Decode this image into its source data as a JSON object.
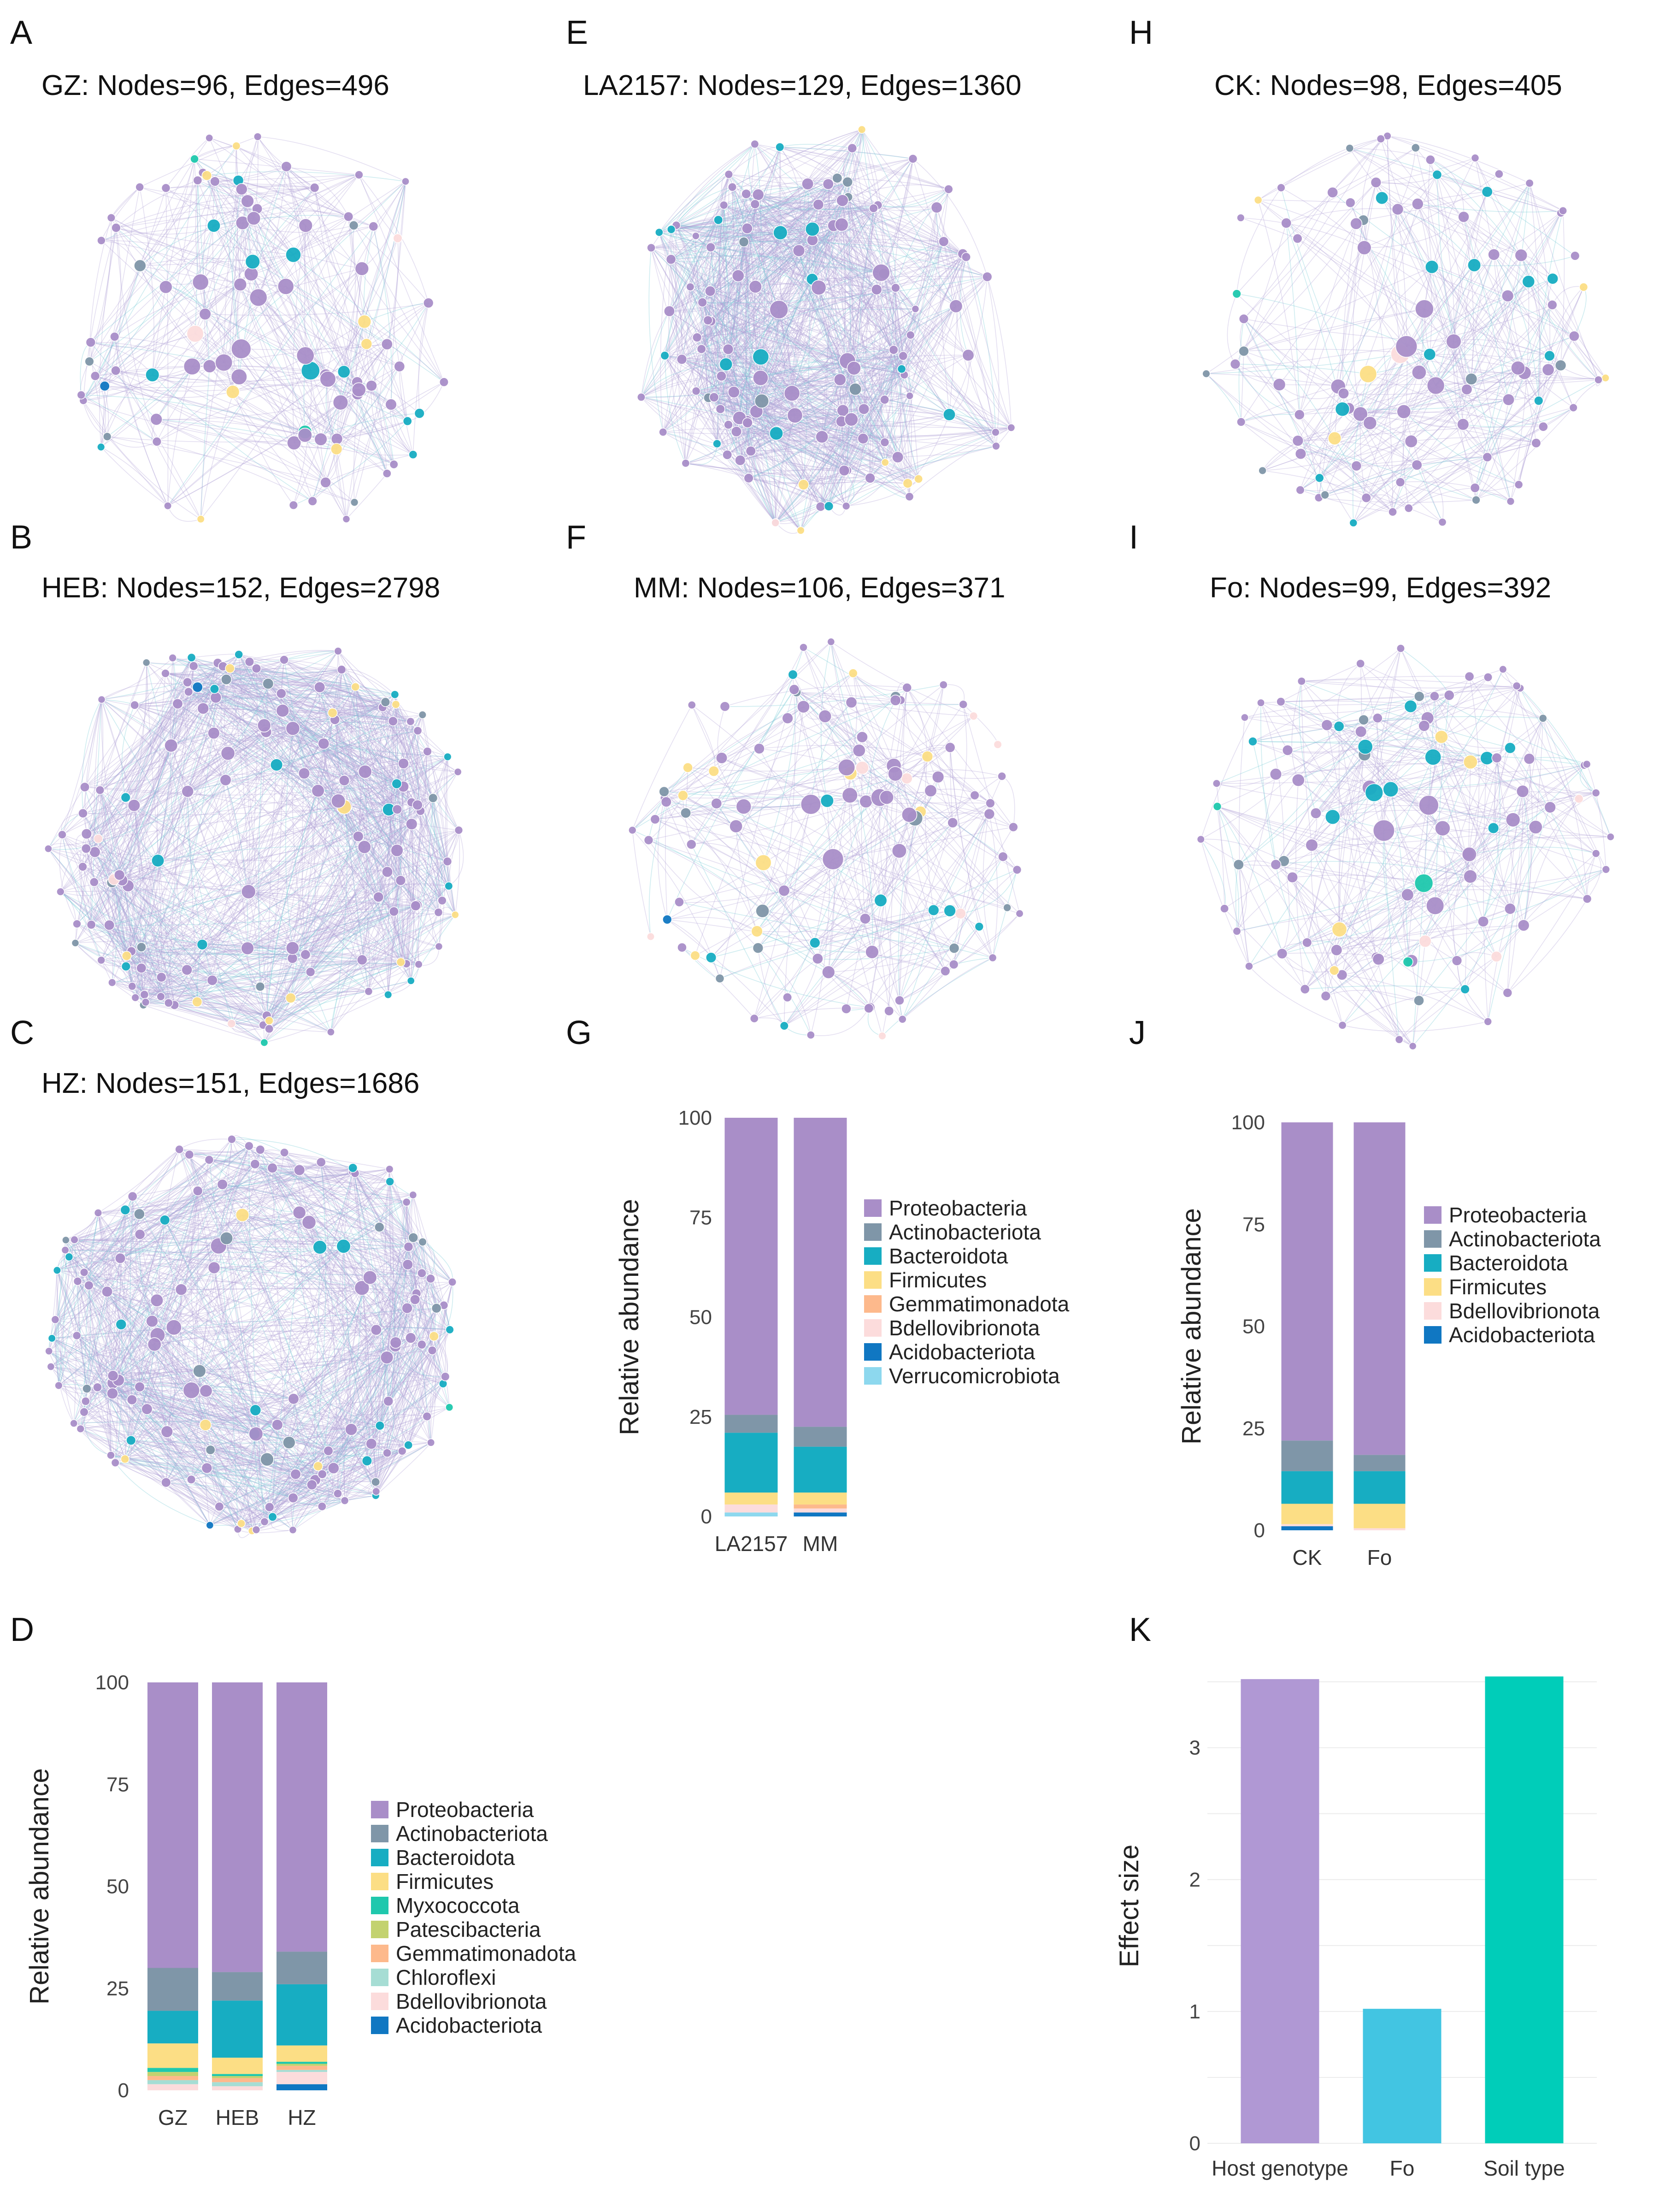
{
  "colors": {
    "Proteobacteria": "#a98ec8",
    "Actinobacteriota": "#7f96a8",
    "Bacteroidota": "#17adc2",
    "Firmicutes": "#fcde85",
    "Myxococcota": "#1fc8ad",
    "Patescibacteria": "#c3d26f",
    "Gemmatimonadota": "#fdb98c",
    "Chloroflexi": "#a6ddd4",
    "Bdellovibrionota": "#fcdcdc",
    "Acidobacteriota": "#1077c2",
    "Verrucomicrobiota": "#8dd8ee"
  },
  "panels": {
    "A": {
      "label": "A",
      "title": "GZ: Nodes=96, Edges=496"
    },
    "B": {
      "label": "B",
      "title": "HEB: Nodes=152, Edges=2798"
    },
    "C": {
      "label": "C",
      "title": "HZ: Nodes=151, Edges=1686"
    },
    "D": {
      "label": "D"
    },
    "E": {
      "label": "E",
      "title": "LA2157: Nodes=129, Edges=1360"
    },
    "F": {
      "label": "F",
      "title": "MM: Nodes=106, Edges=371"
    },
    "G": {
      "label": "G"
    },
    "H": {
      "label": "H",
      "title": "CK: Nodes=98, Edges=405"
    },
    "I": {
      "label": "I",
      "title": "Fo: Nodes=99, Edges=392"
    },
    "J": {
      "label": "J"
    },
    "K": {
      "label": "K"
    }
  },
  "networks": {
    "A": {
      "nodes": 96,
      "edges": 496
    },
    "B": {
      "nodes": 152,
      "edges": 2798
    },
    "C": {
      "nodes": 151,
      "edges": 1686
    },
    "E": {
      "nodes": 129,
      "edges": 1360
    },
    "F": {
      "nodes": 106,
      "edges": 371
    },
    "H": {
      "nodes": 98,
      "edges": 405
    },
    "I": {
      "nodes": 99,
      "edges": 392
    }
  },
  "chart_data": [
    {
      "id": "D",
      "type": "bar",
      "stacked": true,
      "ylabel": "Relative abundance",
      "ylim": [
        0,
        100
      ],
      "yticks": [
        0,
        25,
        50,
        75,
        100
      ],
      "categories": [
        "GZ",
        "HEB",
        "HZ"
      ],
      "legend": [
        "Proteobacteria",
        "Actinobacteriota",
        "Bacteroidota",
        "Firmicutes",
        "Myxococcota",
        "Patescibacteria",
        "Gemmatimonadota",
        "Chloroflexi",
        "Bdellovibrionota",
        "Acidobacteriota"
      ],
      "series": [
        {
          "name": "Acidobacteriota",
          "values": [
            0,
            0,
            1.5
          ]
        },
        {
          "name": "Bdellovibrionota",
          "values": [
            1.5,
            1,
            3
          ]
        },
        {
          "name": "Chloroflexi",
          "values": [
            1,
            1,
            0.5
          ]
        },
        {
          "name": "Gemmatimonadota",
          "values": [
            1,
            1,
            1
          ]
        },
        {
          "name": "Patescibacteria",
          "values": [
            1,
            0.5,
            0.5
          ]
        },
        {
          "name": "Myxococcota",
          "values": [
            1,
            0.5,
            0.5
          ]
        },
        {
          "name": "Firmicutes",
          "values": [
            6,
            4,
            4
          ]
        },
        {
          "name": "Bacteroidota",
          "values": [
            8,
            14,
            15
          ]
        },
        {
          "name": "Actinobacteriota",
          "values": [
            10.5,
            7,
            8
          ]
        },
        {
          "name": "Proteobacteria",
          "values": [
            70,
            71,
            66
          ]
        }
      ]
    },
    {
      "id": "G",
      "type": "bar",
      "stacked": true,
      "ylabel": "Relative abundance",
      "ylim": [
        0,
        100
      ],
      "yticks": [
        0,
        25,
        50,
        75,
        100
      ],
      "categories": [
        "LA2157",
        "MM"
      ],
      "legend": [
        "Proteobacteria",
        "Actinobacteriota",
        "Bacteroidota",
        "Firmicutes",
        "Gemmatimonadota",
        "Bdellovibrionota",
        "Acidobacteriota",
        "Verrucomicrobiota"
      ],
      "series": [
        {
          "name": "Verrucomicrobiota",
          "values": [
            1,
            0
          ]
        },
        {
          "name": "Acidobacteriota",
          "values": [
            0,
            1
          ]
        },
        {
          "name": "Bdellovibrionota",
          "values": [
            2,
            1
          ]
        },
        {
          "name": "Gemmatimonadota",
          "values": [
            0,
            1
          ]
        },
        {
          "name": "Firmicutes",
          "values": [
            3,
            3
          ]
        },
        {
          "name": "Bacteroidota",
          "values": [
            15,
            11.5
          ]
        },
        {
          "name": "Actinobacteriota",
          "values": [
            4.5,
            5
          ]
        },
        {
          "name": "Proteobacteria",
          "values": [
            74.5,
            77.5
          ]
        }
      ]
    },
    {
      "id": "J",
      "type": "bar",
      "stacked": true,
      "ylabel": "Relative abundance",
      "ylim": [
        0,
        100
      ],
      "yticks": [
        0,
        25,
        50,
        75,
        100
      ],
      "categories": [
        "CK",
        "Fo"
      ],
      "legend": [
        "Proteobacteria",
        "Actinobacteriota",
        "Bacteroidota",
        "Firmicutes",
        "Bdellovibrionota",
        "Acidobacteriota"
      ],
      "series": [
        {
          "name": "Acidobacteriota",
          "values": [
            1,
            0
          ]
        },
        {
          "name": "Bdellovibrionota",
          "values": [
            0.5,
            0.5
          ]
        },
        {
          "name": "Firmicutes",
          "values": [
            5,
            6
          ]
        },
        {
          "name": "Bacteroidota",
          "values": [
            8,
            8
          ]
        },
        {
          "name": "Actinobacteriota",
          "values": [
            7.5,
            4
          ]
        },
        {
          "name": "Proteobacteria",
          "values": [
            78,
            81.5
          ]
        }
      ]
    },
    {
      "id": "K",
      "type": "bar",
      "stacked": false,
      "ylabel": "Effect size",
      "ylim": [
        0,
        3.6
      ],
      "yticks": [
        0,
        1,
        2,
        3
      ],
      "grid": true,
      "categories": [
        "Host genotype",
        "Fo",
        "Soil type"
      ],
      "values": [
        3.52,
        1.02,
        3.54
      ],
      "barColors": [
        "#b098d4",
        "#42c5e2",
        "#00cdb9"
      ]
    }
  ]
}
